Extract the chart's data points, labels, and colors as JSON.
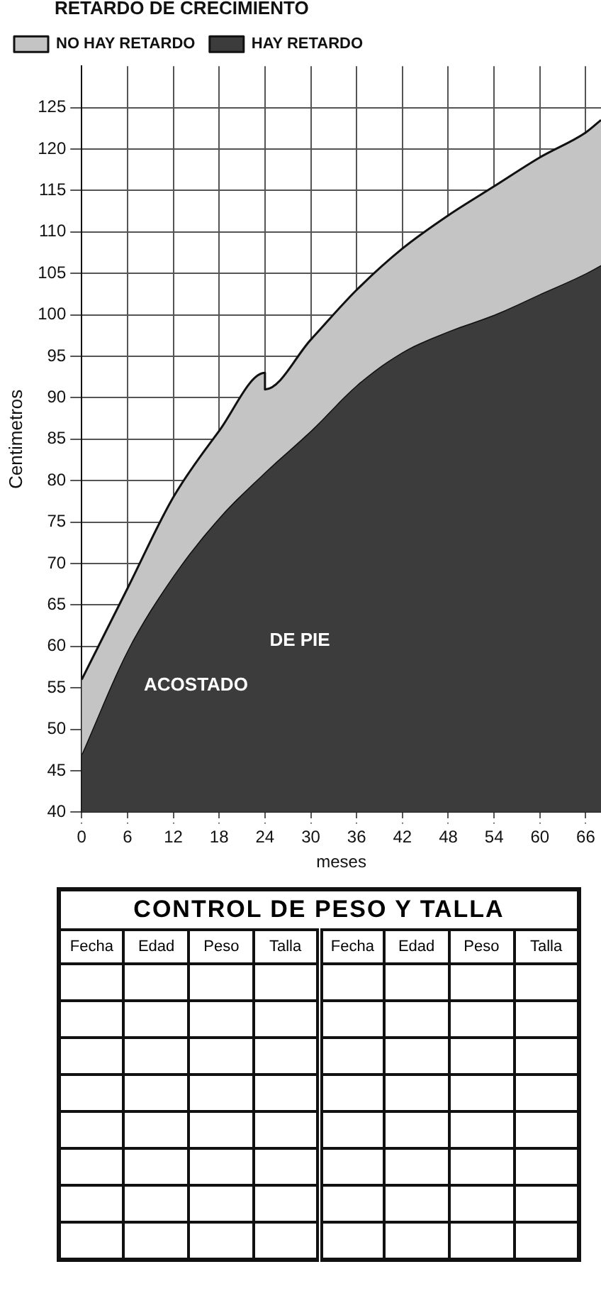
{
  "chart_data": [
    {
      "type": "area",
      "xlabel": "meses",
      "ylabel": "Centimetros",
      "legend_title": "RETARDO DE CRECIMIENTO",
      "series": [
        {
          "name": "NO HAY RETARDO",
          "color": "#c4c4c4",
          "x": [
            0,
            6,
            12,
            18,
            24,
            24,
            30,
            36,
            42,
            48,
            54,
            60,
            66,
            68
          ],
          "values": [
            56,
            67,
            78,
            86,
            93,
            91,
            97,
            103,
            108,
            112,
            115.5,
            119,
            122,
            123.5
          ]
        },
        {
          "name": "HAY RETARDO",
          "color": "#3c3c3c",
          "x": [
            0,
            6,
            12,
            18,
            24,
            30,
            36,
            42,
            48,
            54,
            60,
            66,
            68
          ],
          "values": [
            47,
            59.5,
            68.5,
            75.5,
            81,
            86,
            91.5,
            95.5,
            98,
            100,
            102.5,
            105,
            106
          ]
        }
      ],
      "annotations": [
        "ACOSTADO",
        "DE PIE"
      ],
      "xlim": [
        0,
        68
      ],
      "xticks": [
        0,
        6,
        12,
        18,
        24,
        30,
        36,
        42,
        48,
        54,
        60,
        66
      ],
      "ylim": [
        40,
        130
      ],
      "yticks": [
        40,
        45,
        50,
        55,
        60,
        65,
        70,
        75,
        80,
        85,
        90,
        95,
        100,
        105,
        110,
        115,
        120,
        125
      ],
      "grid": true,
      "legend": "top left",
      "marker": "none",
      "line_style": "solid"
    },
    {
      "type": "other",
      "title": "CONTROL DE PESO Y TALLA",
      "annotations": [
        "Fecha",
        "Edad",
        "Peso",
        "Talla",
        "Fecha",
        "Edad",
        "Peso",
        "Talla"
      ]
    }
  ]
}
